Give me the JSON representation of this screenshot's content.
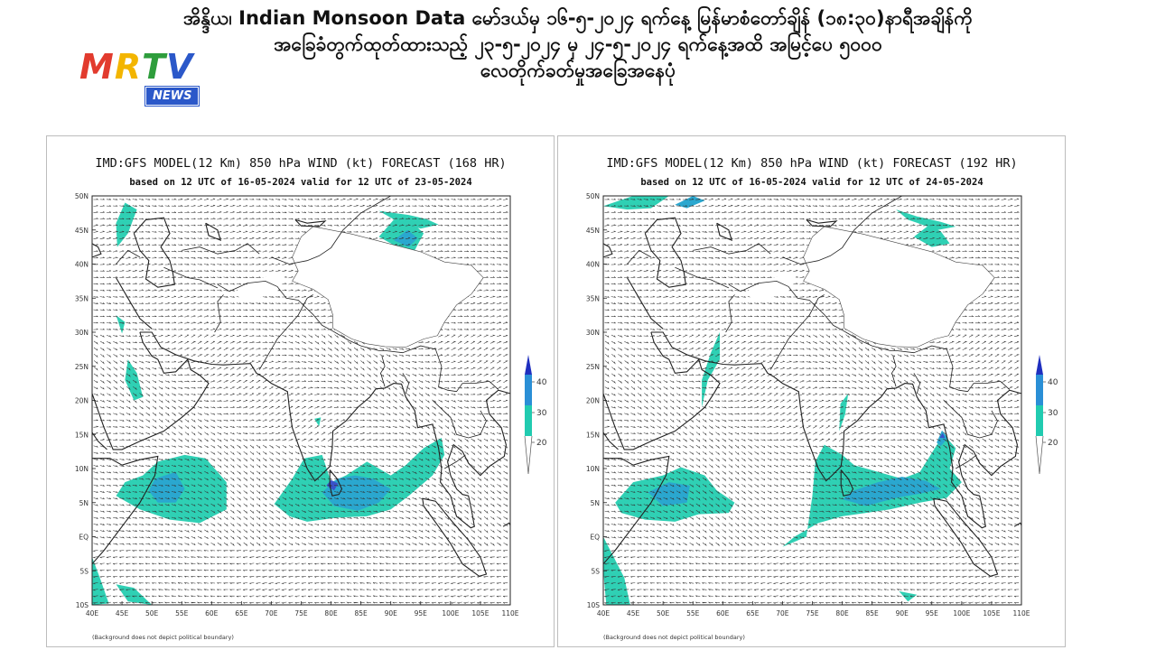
{
  "headline": {
    "line1": "အိန္ဒိယ၊ Indian Monsoon Data မော်ဒယ်မှ ၁၆-၅-၂၀၂၄ ရက်နေ့ မြန်မာစံတော်ချိန် (၁၈:၃၀)နာရီအချိန်ကို",
    "line2": "အခြေခံတွက်ထုတ်ထားသည့် ၂၃-၅-၂၀၂၄ မှ ၂၄-၅-၂၀၂၄ ရက်နေ့အထိ အမြင့်ပေ ၅၀၀၀",
    "line3": "လေတိုက်ခတ်မှုအခြေအနေပုံ"
  },
  "logo": {
    "letters": [
      "M",
      "R",
      "T",
      "V"
    ],
    "letter_colors": [
      "#e23b2e",
      "#f3b500",
      "#2e9d3c",
      "#2b58c9"
    ],
    "badge": "NEWS"
  },
  "maps": [
    {
      "title": "IMD:GFS MODEL(12 Km) 850 hPa WIND (kt) FORECAST (168 HR)",
      "subtitle": "based on 12 UTC of 16-05-2024 valid for 12 UTC of 23-05-2024",
      "footnote": "(Background does not depict political boundary)"
    },
    {
      "title": "IMD:GFS MODEL(12 Km) 850 hPa WIND (kt) FORECAST (192 HR)",
      "subtitle": "based on 12 UTC of 16-05-2024 valid for 12 UTC of 24-05-2024",
      "footnote": "(Background does not depict political boundary)"
    }
  ],
  "axes": {
    "lat_labels": [
      "50N",
      "45N",
      "40N",
      "35N",
      "30N",
      "25N",
      "20N",
      "15N",
      "10N",
      "5N",
      "EQ",
      "5S",
      "10S"
    ],
    "lon_labels": [
      "40E",
      "45E",
      "50E",
      "55E",
      "60E",
      "65E",
      "70E",
      "75E",
      "80E",
      "85E",
      "90E",
      "95E",
      "100E",
      "105E",
      "110E"
    ]
  },
  "legend": {
    "labels": [
      "40",
      "30",
      "20"
    ],
    "colors": [
      "#1f2fbf",
      "#2a8fd6",
      "#21cbb0"
    ]
  },
  "colors": {
    "shade_light": "#2fd0b4",
    "shade_mid": "#2aa7cf",
    "shade_dark": "#3a52c9",
    "land_line": "#222222",
    "arrow": "#333333",
    "plateau": "#ffffff"
  }
}
